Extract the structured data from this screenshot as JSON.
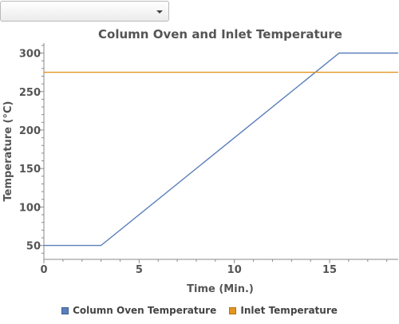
{
  "selector": {
    "value": ""
  },
  "colors": {
    "series0": "#5b7fba",
    "series1": "#e2951f",
    "text": "#555555"
  },
  "chart_data": {
    "type": "line",
    "title": "Column Oven and Inlet Temperature",
    "xlabel": "Time  (Min.)",
    "ylabel": "Temperature  (°C)",
    "xlim": [
      0,
      18.6
    ],
    "ylim": [
      32,
      313
    ],
    "x_ticks": [
      0,
      5,
      10,
      15
    ],
    "y_ticks": [
      50,
      100,
      150,
      200,
      250,
      300
    ],
    "grid": false,
    "legend_position": "bottom",
    "series": [
      {
        "name": "Column Oven Temperature",
        "x": [
          0,
          3,
          15.5,
          18.6
        ],
        "y": [
          50,
          50,
          300,
          300
        ]
      },
      {
        "name": "Inlet Temperature",
        "x": [
          0,
          18.6
        ],
        "y": [
          275,
          275
        ]
      }
    ]
  }
}
